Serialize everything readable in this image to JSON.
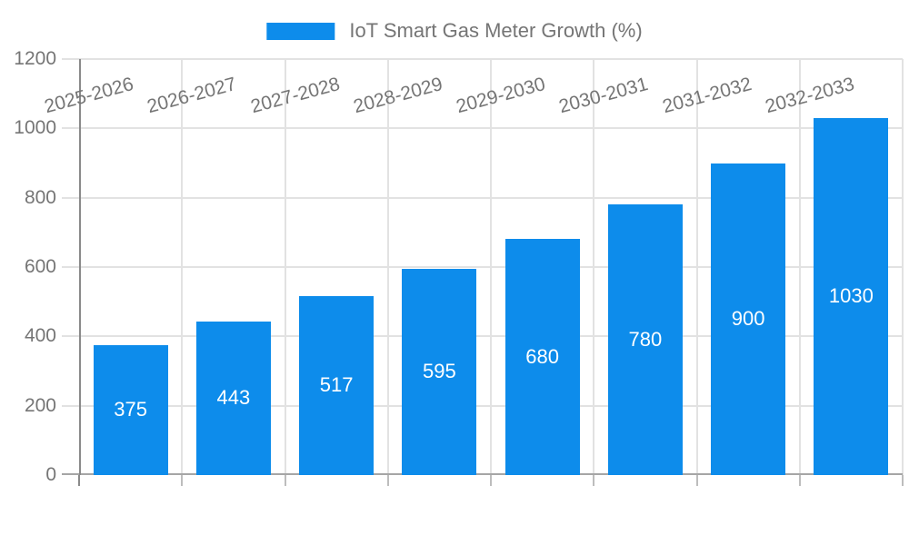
{
  "legend": {
    "label": "IoT Smart Gas Meter Growth (%)"
  },
  "chart_data": {
    "type": "bar",
    "title": "IoT Smart Gas Meter Growth (%)",
    "categories": [
      "2025-2026",
      "2026-2027",
      "2027-2028",
      "2028-2029",
      "2029-2030",
      "2030-2031",
      "2031-2032",
      "2032-2033"
    ],
    "values": [
      375,
      443,
      517,
      595,
      680,
      780,
      900,
      1030
    ],
    "xlabel": "",
    "ylabel": "",
    "ylim": [
      0,
      1200
    ],
    "yticks": [
      0,
      200,
      400,
      600,
      800,
      1000,
      1200
    ],
    "grid": true,
    "legend_position": "top-center",
    "bar_labels_inside": true
  },
  "colors": {
    "bar": "#0d8ceb",
    "bar_label": "#ffffff",
    "axis_text": "#757575",
    "legend_text": "#757575",
    "gridline": "#e2e2e2",
    "y_axis_line": "#8a8a8a",
    "x_axis_line": "#a6a6a6",
    "axis_tick": "#bdbdbd"
  }
}
